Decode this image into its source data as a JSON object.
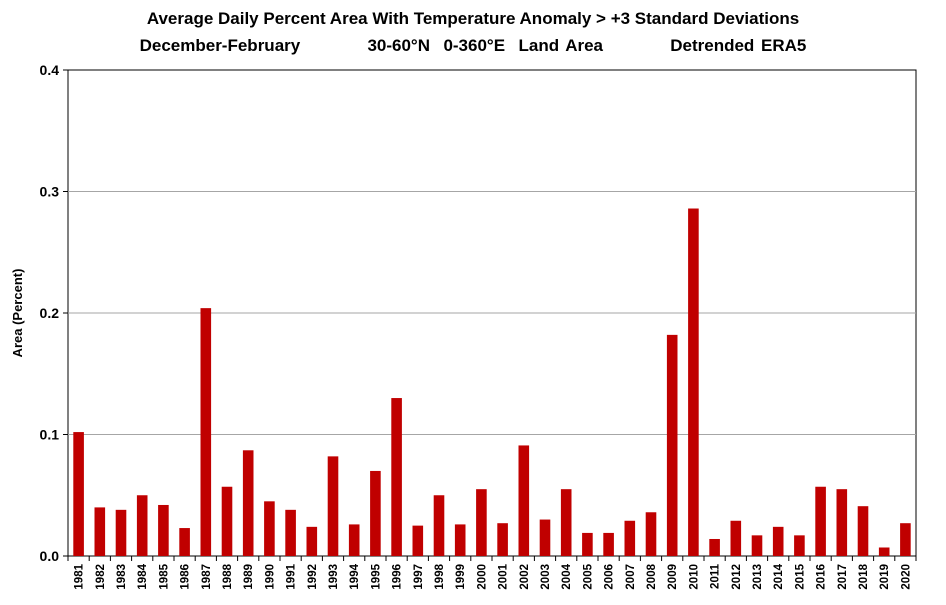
{
  "chart_data": {
    "type": "bar",
    "title": "Average Daily Percent Area With Temperature Anomaly > +3 Standard Deviations",
    "subtitle": "December-February          30-60°N  0-360°E  Land Area          Detrended ERA5",
    "xlabel": "",
    "ylabel": "Area (Percent)",
    "ylim": [
      0,
      0.4
    ],
    "yticks": [
      "0.0",
      "0.1",
      "0.2",
      "0.3",
      "0.4"
    ],
    "grid": true,
    "legend": "none",
    "bar_color": "#c00000",
    "categories": [
      "1981",
      "1982",
      "1983",
      "1984",
      "1985",
      "1986",
      "1987",
      "1988",
      "1989",
      "1990",
      "1991",
      "1992",
      "1993",
      "1994",
      "1995",
      "1996",
      "1997",
      "1998",
      "1999",
      "2000",
      "2001",
      "2002",
      "2003",
      "2004",
      "2005",
      "2006",
      "2007",
      "2008",
      "2009",
      "2010",
      "2011",
      "2012",
      "2013",
      "2014",
      "2015",
      "2016",
      "2017",
      "2018",
      "2019",
      "2020"
    ],
    "values": [
      0.102,
      0.04,
      0.038,
      0.05,
      0.042,
      0.023,
      0.204,
      0.057,
      0.087,
      0.045,
      0.038,
      0.024,
      0.082,
      0.026,
      0.07,
      0.13,
      0.025,
      0.05,
      0.026,
      0.055,
      0.027,
      0.091,
      0.03,
      0.055,
      0.019,
      0.019,
      0.029,
      0.036,
      0.182,
      0.286,
      0.014,
      0.029,
      0.017,
      0.024,
      0.017,
      0.057,
      0.055,
      0.041,
      0.007,
      0.027
    ]
  }
}
